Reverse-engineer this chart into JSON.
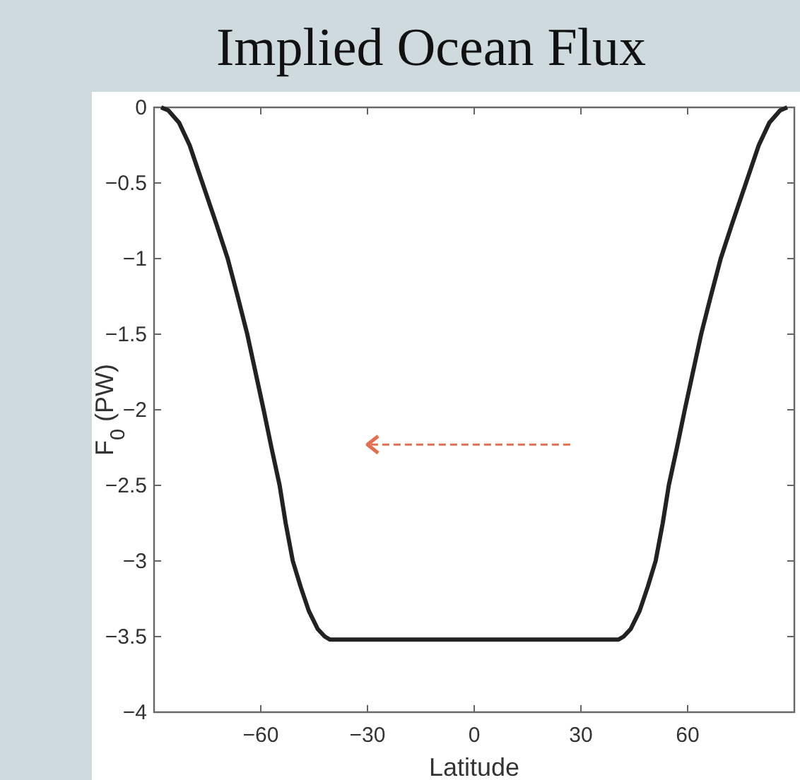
{
  "chart_data": {
    "type": "line",
    "title": "Implied Ocean Flux",
    "xlabel": "Latitude",
    "ylabel": "F$_{0}$ (PW)",
    "x": [
      -88,
      -86,
      -83,
      -80,
      -76.4,
      -72.5,
      -69.3,
      -66.5,
      -63.8,
      -61.5,
      -59.2,
      -57,
      -54.7,
      -53,
      -51,
      -48.8,
      -46.5,
      -44,
      -42,
      -40.5,
      -20,
      0,
      20,
      40.5,
      42,
      44,
      46.5,
      48.8,
      51,
      53,
      54.7,
      57,
      59.2,
      61.5,
      63.8,
      66.5,
      69.3,
      72.5,
      76.4,
      80,
      83,
      86,
      88
    ],
    "series": [
      {
        "color": "#222222",
        "values": [
          0,
          -0.02,
          -0.1,
          -0.25,
          -0.5,
          -0.77,
          -1,
          -1.25,
          -1.5,
          -1.75,
          -2,
          -2.25,
          -2.5,
          -2.75,
          -3,
          -3.17,
          -3.33,
          -3.45,
          -3.5,
          -3.52,
          -3.52,
          -3.52,
          -3.52,
          -3.52,
          -3.5,
          -3.45,
          -3.33,
          -3.17,
          -3,
          -2.75,
          -2.5,
          -2.25,
          -2,
          -1.75,
          -1.5,
          -1.25,
          -1,
          -0.77,
          -0.5,
          -0.25,
          -0.1,
          -0.02,
          0
        ]
      }
    ],
    "xlim": [
      -90,
      90
    ],
    "xticks": [
      {
        "value": -60,
        "label": "−60"
      },
      {
        "value": -30,
        "label": "−30"
      },
      0,
      30,
      60
    ],
    "ylim": [
      -4,
      0
    ],
    "yticks": [
      {
        "value": -4,
        "label": "−4"
      },
      {
        "value": -3.5,
        "label": "−3.5"
      },
      {
        "value": -3,
        "label": "−3"
      },
      {
        "value": -2.5,
        "label": "−2.5"
      },
      {
        "value": -2,
        "label": "−2"
      },
      {
        "value": -1.5,
        "label": "−1.5"
      },
      {
        "value": -1,
        "label": "−1"
      },
      {
        "value": -0.5,
        "label": "−0.5"
      },
      0
    ],
    "grid": false,
    "line_style": "solid",
    "marker": "none"
  }
}
